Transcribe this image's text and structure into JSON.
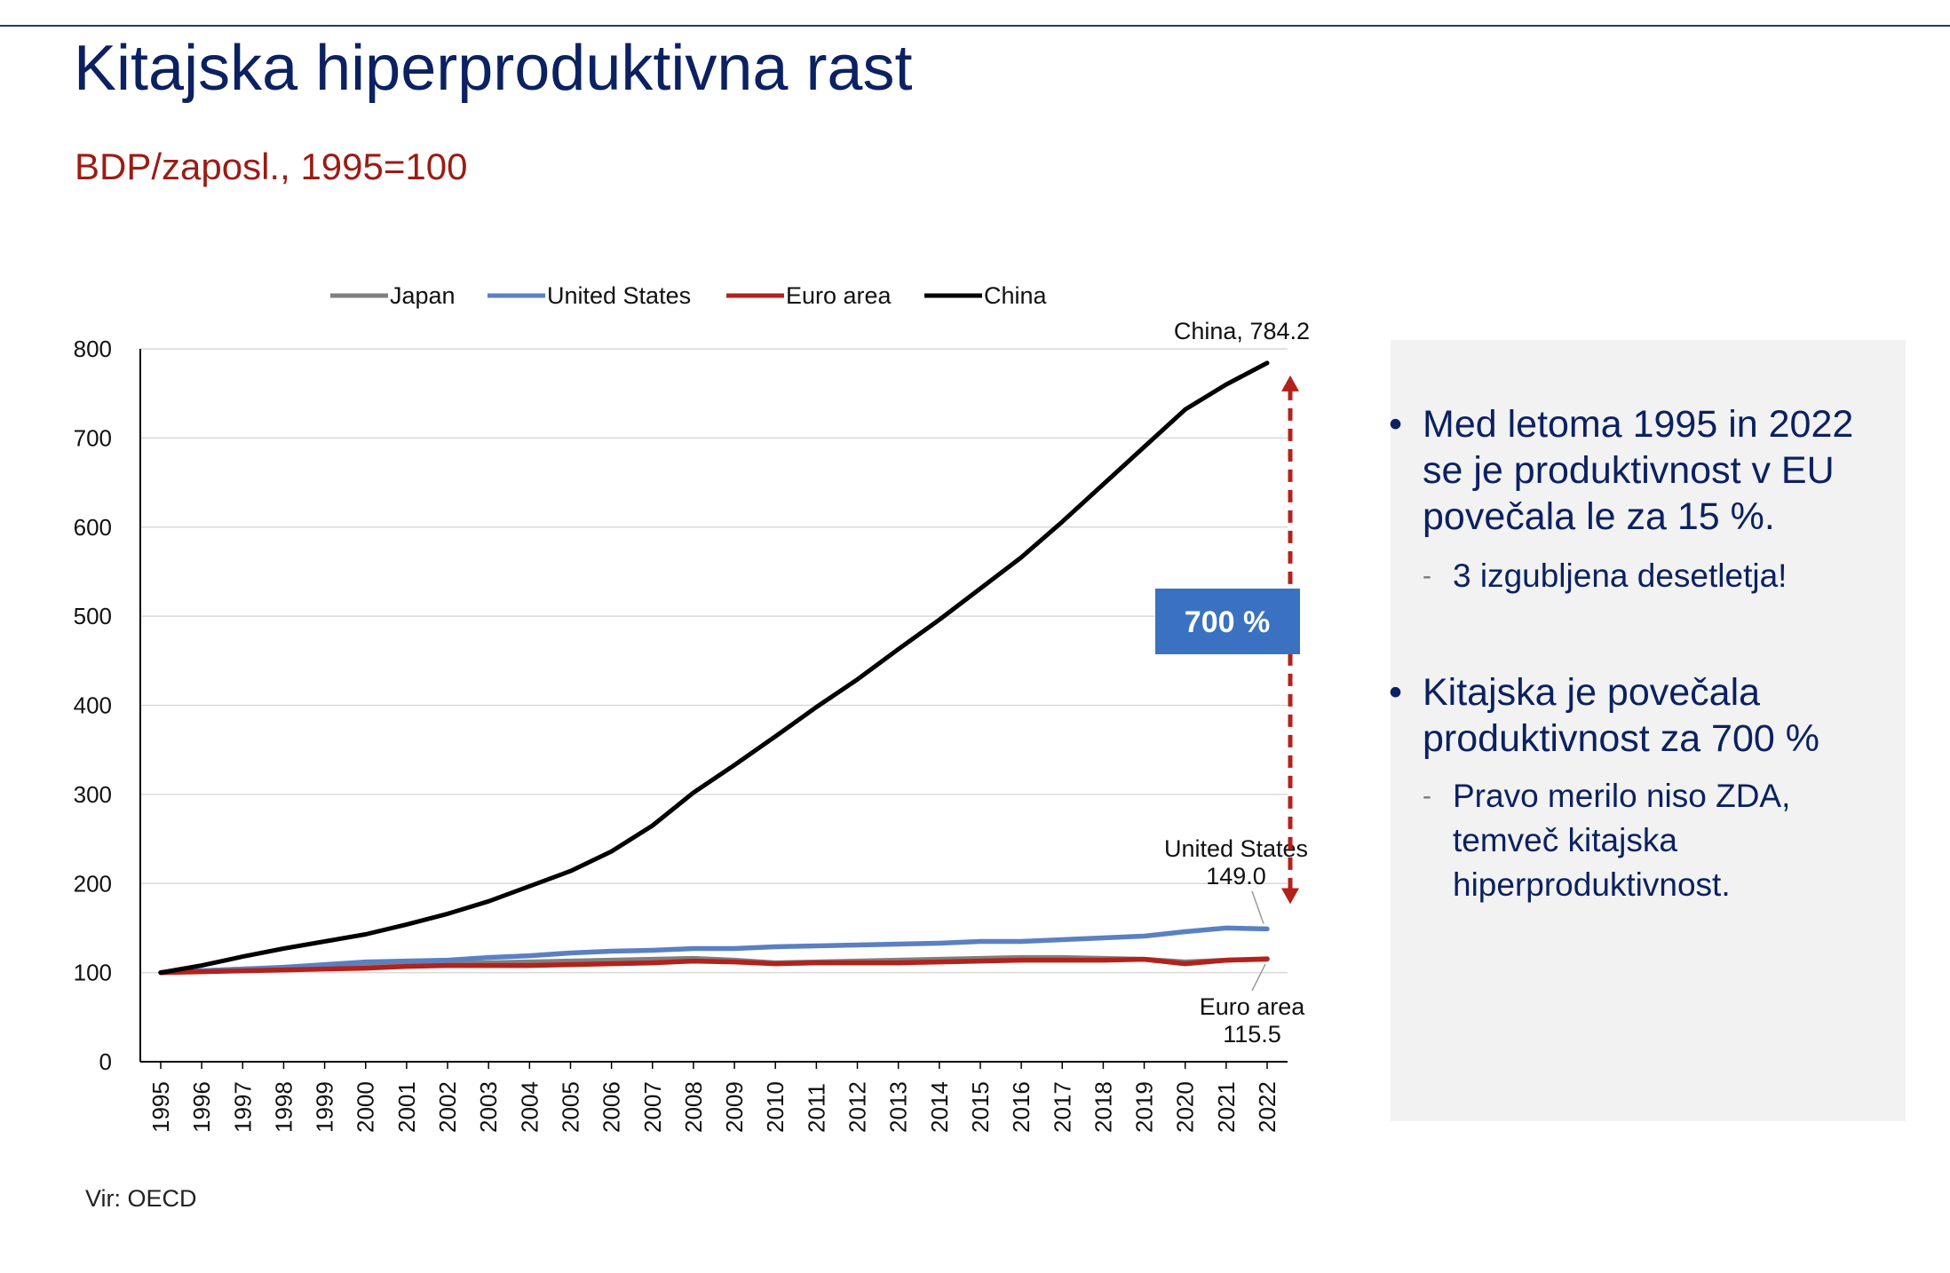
{
  "slide": {
    "title": "Kitajska hiperproduktivna rast",
    "subtitle": "BDP/zaposl., 1995=100",
    "source": "Vir: OECD"
  },
  "chart_data": {
    "type": "line",
    "x": [
      1995,
      1996,
      1997,
      1998,
      1999,
      2000,
      2001,
      2002,
      2003,
      2004,
      2005,
      2006,
      2007,
      2008,
      2009,
      2010,
      2011,
      2012,
      2013,
      2014,
      2015,
      2016,
      2017,
      2018,
      2019,
      2020,
      2021,
      2022
    ],
    "ylim": [
      0,
      800
    ],
    "yticks": [
      0,
      100,
      200,
      300,
      400,
      500,
      600,
      700,
      800
    ],
    "grid": true,
    "legend": "top",
    "series": [
      {
        "name": "Japan",
        "color": "#7f7f7f",
        "values": [
          100,
          102,
          104,
          105,
          106,
          108,
          109,
          110,
          111,
          112,
          113,
          114,
          115,
          116,
          114,
          111,
          112,
          113,
          114,
          115,
          116,
          117,
          117,
          116,
          115,
          112,
          114,
          115
        ]
      },
      {
        "name": "United States",
        "color": "#5b80c2",
        "values": [
          100,
          102,
          104,
          106,
          109,
          112,
          113,
          114,
          117,
          119,
          122,
          124,
          125,
          127,
          127,
          129,
          130,
          131,
          132,
          133,
          135,
          135,
          137,
          139,
          141,
          146,
          150,
          149
        ]
      },
      {
        "name": "Euro area",
        "color": "#b3211b",
        "values": [
          100,
          101,
          102,
          103,
          104,
          105,
          107,
          108,
          108,
          108,
          109,
          110,
          111,
          113,
          112,
          110,
          111,
          111,
          111,
          112,
          113,
          114,
          114,
          114,
          115,
          110,
          114,
          115.5
        ]
      },
      {
        "name": "China",
        "color": "#000000",
        "values": [
          100,
          108,
          118,
          127,
          135,
          143,
          154,
          166,
          180,
          197,
          214,
          236,
          265,
          302,
          333,
          365,
          398,
          429,
          463,
          496,
          531,
          566,
          606,
          648,
          690,
          732,
          760,
          784.2
        ]
      }
    ],
    "annotations": {
      "china_label": "China, 784.2",
      "us_label_line1": "United States",
      "us_label_line2": "149.0",
      "euro_label_line1": "Euro area",
      "euro_label_line2": "115.5",
      "gap_label": "700 %"
    },
    "arrow_color": "#b3211b",
    "gap_box_color": "#3a72c1"
  },
  "panel": {
    "bullet1": {
      "line1": "Med letoma 1995 in 2022",
      "line2": "se je produktivnost v EU",
      "line3": "povečala le za 15 %."
    },
    "sub1": "3 izgubljena desetletja!",
    "bullet2": {
      "line1": "Kitajska je povečala",
      "line2": "produktivnost za 700 %"
    },
    "sub2": {
      "line1": "Pravo merilo niso ZDA,",
      "line2": "temveč kitajska",
      "line3": "hiperproduktivnost."
    },
    "bullet_glyph": "•",
    "dash_glyph": "-"
  }
}
